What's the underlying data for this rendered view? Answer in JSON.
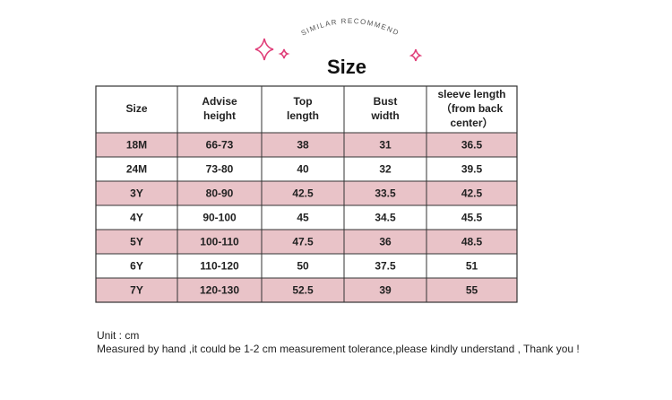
{
  "header": {
    "subtitle": "SIMILAR RECOMMEND",
    "title": "Size"
  },
  "table": {
    "columns": [
      [
        "Size"
      ],
      [
        "Advise",
        "height"
      ],
      [
        "Top",
        "length"
      ],
      [
        "Bust",
        "width"
      ],
      [
        "sleeve length",
        "（from back",
        "center）"
      ]
    ],
    "rows": [
      [
        "18M",
        "66-73",
        "38",
        "31",
        "36.5"
      ],
      [
        "24M",
        "73-80",
        "40",
        "32",
        "39.5"
      ],
      [
        "3Y",
        "80-90",
        "42.5",
        "33.5",
        "42.5"
      ],
      [
        "4Y",
        "90-100",
        "45",
        "34.5",
        "45.5"
      ],
      [
        "5Y",
        "100-110",
        "47.5",
        "36",
        "48.5"
      ],
      [
        "6Y",
        "110-120",
        "50",
        "37.5",
        "51"
      ],
      [
        "7Y",
        "120-130",
        "52.5",
        "39",
        "55"
      ]
    ]
  },
  "notes": [
    "Unit : cm",
    "Measured by hand ,it could be 1-2 cm measurement tolerance,please kindly understand , Thank you !"
  ]
}
